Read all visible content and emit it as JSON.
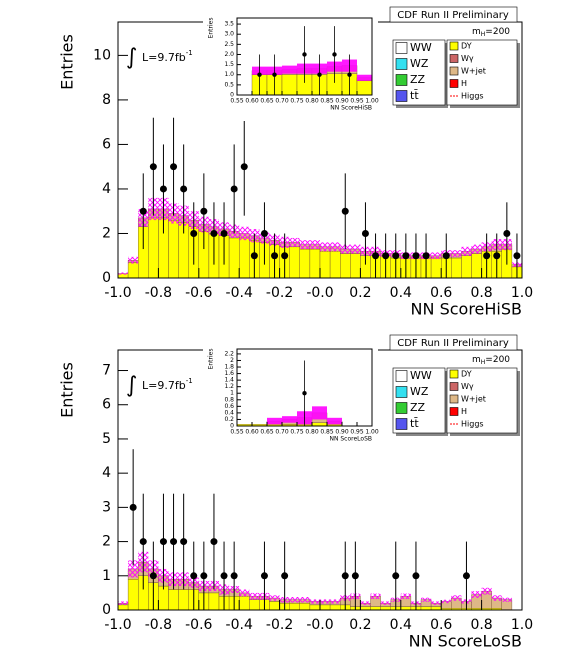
{
  "chart_data": [
    {
      "type": "histogram",
      "header": "CDF Run II Preliminary",
      "mass": {
        "base": "m",
        "sub": "H",
        "rest": "=200"
      },
      "lumi": {
        "symbol": "∫",
        "text": "L=9.7fb",
        "sup": "-1"
      },
      "xlabel": "NN ScoreHiSB",
      "ylabel": "Entries",
      "xlim": [
        -1,
        1
      ],
      "ylim": [
        0,
        11.5
      ],
      "xticks": [
        {
          "value": -1,
          "label": "-1.0"
        },
        -0.8,
        -0.6,
        -0.4,
        -0.2,
        {
          "value": 0,
          "label": "-0.0"
        },
        0.2,
        0.4,
        0.6,
        0.8,
        {
          "value": 1,
          "label": "1.0"
        }
      ],
      "yticks": [
        0,
        2,
        4,
        6,
        8,
        10
      ],
      "bins": [
        -1,
        -0.95,
        -0.9,
        -0.85,
        -0.8,
        -0.75,
        -0.7,
        -0.65,
        -0.6,
        -0.55,
        -0.5,
        -0.45,
        -0.4,
        -0.35,
        -0.3,
        -0.25,
        -0.2,
        -0.15,
        -0.1,
        -0.05,
        0,
        0.05,
        0.1,
        0.15,
        0.2,
        0.25,
        0.3,
        0.35,
        0.4,
        0.45,
        0.5,
        0.55,
        0.6,
        0.65,
        0.7,
        0.75,
        0.8,
        0.85,
        0.9,
        0.95,
        1
      ],
      "series": [
        {
          "name": "WW",
          "color": "#ffffff"
        },
        {
          "name": "WZ",
          "color": "#33e0f0"
        },
        {
          "name": "ZZ",
          "color": "#33cc33"
        },
        {
          "name": "tt̄",
          "color": "#5555ee"
        },
        {
          "name": "DY",
          "color": "#ffff00",
          "values": [
            0.2,
            0.7,
            2.3,
            2.7,
            2.7,
            2.6,
            2.5,
            2.3,
            2.1,
            2.0,
            1.9,
            1.8,
            1.8,
            1.7,
            1.6,
            1.5,
            1.4,
            1.4,
            1.3,
            1.3,
            1.2,
            1.2,
            1.1,
            1.1,
            1.0,
            1.0,
            1.0,
            0.9,
            0.9,
            0.9,
            0.9,
            0.9,
            0.9,
            0.9,
            1.0,
            1.1,
            1.2,
            1.2,
            1.3,
            0.5
          ]
        },
        {
          "name": "Wγ",
          "color": "#cc6666"
        },
        {
          "name": "W+jet",
          "color": "#deb887",
          "values": [
            0,
            0.1,
            0.4,
            0.4,
            0.4,
            0.3,
            0.3,
            0.3,
            0.3,
            0.3,
            0.3,
            0.3,
            0.2,
            0.2,
            0.2,
            0.2,
            0.2,
            0.2,
            0.2,
            0.2,
            0.2,
            0.2,
            0.2,
            0.2,
            0.2,
            0.2,
            0.1,
            0.2,
            0.1,
            0.1,
            0.1,
            0.1,
            0.2,
            0.2,
            0.2,
            0.2,
            0.2,
            0.3,
            0.2,
            0.1
          ]
        },
        {
          "name": "H",
          "color": "#ff0000"
        },
        {
          "name": "Higgs",
          "color": "#ff0000",
          "marker": "line"
        }
      ],
      "uncertainty": [
        0.05,
        0.15,
        0.4,
        0.5,
        0.5,
        0.45,
        0.45,
        0.4,
        0.35,
        0.35,
        0.3,
        0.3,
        0.3,
        0.3,
        0.25,
        0.25,
        0.25,
        0.2,
        0.2,
        0.2,
        0.2,
        0.2,
        0.2,
        0.2,
        0.2,
        0.2,
        0.15,
        0.15,
        0.15,
        0.15,
        0.15,
        0.15,
        0.15,
        0.15,
        0.2,
        0.2,
        0.2,
        0.25,
        0.25,
        0.1
      ],
      "band_color": "#ff00ff",
      "points": {
        "x": [
          -0.875,
          -0.825,
          -0.775,
          -0.725,
          -0.675,
          -0.625,
          -0.575,
          -0.525,
          -0.475,
          -0.425,
          -0.375,
          -0.325,
          -0.275,
          -0.225,
          -0.175,
          0.125,
          0.225,
          0.275,
          0.325,
          0.375,
          0.425,
          0.475,
          0.525,
          0.625,
          0.825,
          0.875,
          0.925,
          0.975
        ],
        "values": [
          3,
          5,
          4,
          5,
          4,
          2,
          3,
          2,
          2,
          4,
          5,
          1,
          2,
          1,
          1,
          3,
          2,
          1,
          1,
          1,
          1,
          1,
          1,
          1,
          1,
          1,
          2,
          1
        ],
        "errors": [
          1.7,
          2.2,
          2,
          2.2,
          2,
          1.4,
          1.7,
          1.4,
          1.4,
          2,
          2.2,
          1,
          1.4,
          1,
          1,
          1.7,
          1.4,
          1,
          1,
          1,
          1,
          1,
          1,
          1,
          1,
          1,
          1.4,
          1
        ]
      },
      "inset": {
        "type": "histogram",
        "xlabel": "NN ScoreHiSB",
        "ylabel": "Entries",
        "xlim": [
          0.55,
          1
        ],
        "ylim": [
          0,
          3.8
        ],
        "xticks": [
          0.55,
          {
            "value": 0.6,
            "label": "0.60"
          },
          0.65,
          {
            "value": 0.7,
            "label": "0.70"
          },
          0.75,
          {
            "value": 0.8,
            "label": "0.80"
          },
          0.85,
          {
            "value": 0.9,
            "label": "0.90"
          },
          0.95,
          {
            "value": 1,
            "label": "1.00"
          }
        ],
        "yticks": [
          0,
          0.5,
          {
            "value": 1,
            "label": "1.0"
          },
          1.5,
          {
            "value": 2,
            "label": "2.0"
          },
          2.5,
          {
            "value": 3,
            "label": "3.0"
          },
          3.5
        ],
        "bins": [
          0.55,
          0.6,
          0.65,
          0.7,
          0.75,
          0.8,
          0.85,
          0.9,
          0.95,
          1
        ],
        "series": [
          {
            "color": "#ffff00",
            "values": [
              0,
              1,
              1,
              1,
              1,
              1,
              1.05,
              1.05,
              0.7
            ]
          },
          {
            "color": "#deb887",
            "values": [
              0,
              0.2,
              0.2,
              0.25,
              0.3,
              0.3,
              0.35,
              0.4,
              0.15
            ]
          }
        ],
        "uncertainty": [
          0,
          0.2,
          0.2,
          0.2,
          0.25,
          0.25,
          0.25,
          0.3,
          0.15
        ],
        "band_color": "#ff00ff",
        "points": {
          "x": [
            0.625,
            0.675,
            0.775,
            0.825,
            0.875,
            0.925
          ],
          "values": [
            1,
            1,
            2,
            1,
            2,
            1
          ],
          "errors": [
            1,
            1,
            1.4,
            1,
            1.4,
            1
          ]
        }
      }
    },
    {
      "type": "histogram",
      "header": "CDF Run II Preliminary",
      "mass": {
        "base": "m",
        "sub": "H",
        "rest": "=200"
      },
      "lumi": {
        "symbol": "∫",
        "text": "L=9.7fb",
        "sup": "-1"
      },
      "xlabel": "NN ScoreLoSB",
      "ylabel": "Entries",
      "xlim": [
        -1,
        1
      ],
      "ylim": [
        0,
        7.6
      ],
      "xticks": [
        {
          "value": -1,
          "label": "-1.0"
        },
        -0.8,
        -0.6,
        -0.4,
        -0.2,
        {
          "value": 0,
          "label": "-0.0"
        },
        0.2,
        0.4,
        0.6,
        0.8,
        {
          "value": 1,
          "label": "1.0"
        }
      ],
      "yticks": [
        0,
        1,
        2,
        3,
        4,
        5,
        6,
        7
      ],
      "bins": [
        -1,
        -0.95,
        -0.9,
        -0.85,
        -0.8,
        -0.75,
        -0.7,
        -0.65,
        -0.6,
        -0.55,
        -0.5,
        -0.45,
        -0.4,
        -0.35,
        -0.3,
        -0.25,
        -0.2,
        -0.15,
        -0.1,
        -0.05,
        0,
        0.05,
        0.1,
        0.15,
        0.2,
        0.25,
        0.3,
        0.35,
        0.4,
        0.45,
        0.5,
        0.55,
        0.6,
        0.65,
        0.7,
        0.75,
        0.8,
        0.85,
        0.9,
        0.95,
        1
      ],
      "series": [
        {
          "name": "WW",
          "color": "#ffffff"
        },
        {
          "name": "WZ",
          "color": "#33e0f0"
        },
        {
          "name": "ZZ",
          "color": "#33cc33"
        },
        {
          "name": "tt̄",
          "color": "#5555ee"
        },
        {
          "name": "DY",
          "color": "#ffff00",
          "values": [
            0.15,
            0.9,
            1.0,
            0.8,
            0.7,
            0.6,
            0.6,
            0.6,
            0.5,
            0.5,
            0.4,
            0.4,
            0.4,
            0.3,
            0.3,
            0.25,
            0.2,
            0.2,
            0.2,
            0.15,
            0.15,
            0.15,
            0.15,
            0.1,
            0.1,
            0.1,
            0.1,
            0.1,
            0.1,
            0.1,
            0.1,
            0.1,
            0.05,
            0.05,
            0.05,
            0.05,
            0.05,
            0.05,
            0,
            0
          ]
        },
        {
          "name": "Wγ",
          "color": "#cc6666"
        },
        {
          "name": "W+jet",
          "color": "#deb887",
          "values": [
            0.05,
            0.3,
            0.4,
            0.4,
            0.3,
            0.3,
            0.3,
            0.2,
            0.2,
            0.2,
            0.2,
            0.2,
            0.1,
            0.1,
            0.1,
            0.1,
            0.1,
            0.1,
            0.1,
            0.1,
            0.1,
            0.1,
            0.2,
            0.3,
            0.1,
            0.3,
            0.1,
            0.2,
            0.3,
            0.1,
            0.2,
            0.1,
            0.2,
            0.3,
            0.2,
            0.4,
            0.5,
            0.3,
            0.3,
            0
          ]
        },
        {
          "name": "H",
          "color": "#ff0000"
        },
        {
          "name": "Higgs",
          "color": "#ff0000",
          "marker": "line"
        }
      ],
      "uncertainty": [
        0.05,
        0.25,
        0.3,
        0.25,
        0.2,
        0.2,
        0.2,
        0.15,
        0.15,
        0.15,
        0.15,
        0.1,
        0.1,
        0.1,
        0.1,
        0.08,
        0.08,
        0.08,
        0.08,
        0.06,
        0.06,
        0.06,
        0.08,
        0.08,
        0.05,
        0.08,
        0.05,
        0.06,
        0.08,
        0.05,
        0.06,
        0.05,
        0.05,
        0.08,
        0.06,
        0.1,
        0.1,
        0.08,
        0.06,
        0
      ],
      "band_color": "#ff00ff",
      "points": {
        "x": [
          -0.925,
          -0.875,
          -0.825,
          -0.775,
          -0.725,
          -0.675,
          -0.625,
          -0.575,
          -0.525,
          -0.475,
          -0.425,
          -0.275,
          -0.175,
          0.125,
          0.175,
          0.375,
          0.475,
          0.725
        ],
        "values": [
          3,
          2,
          1,
          2,
          2,
          2,
          1,
          1,
          2,
          1,
          1,
          1,
          1,
          1,
          1,
          1,
          1,
          1
        ],
        "errors": [
          1.7,
          1.4,
          1,
          1.4,
          1.4,
          1.4,
          1,
          1,
          1.4,
          1,
          1,
          1,
          1,
          1,
          1,
          1,
          1,
          1
        ]
      },
      "inset": {
        "type": "histogram",
        "xlabel": "NN ScoreLoSB",
        "ylabel": "Entries",
        "xlim": [
          0.55,
          1
        ],
        "ylim": [
          0,
          2.35
        ],
        "xticks": [
          0.55,
          {
            "value": 0.6,
            "label": "0.60"
          },
          0.65,
          {
            "value": 0.7,
            "label": "0.70"
          },
          0.75,
          {
            "value": 0.8,
            "label": "0.80"
          },
          0.85,
          {
            "value": 0.9,
            "label": "0.90"
          },
          0.95,
          {
            "value": 1,
            "label": "1.00"
          }
        ],
        "yticks": [
          0,
          0.2,
          0.4,
          0.6,
          0.8,
          1,
          1.2,
          1.4,
          1.6,
          1.8,
          2,
          2.2
        ],
        "bins": [
          0.55,
          0.6,
          0.65,
          0.7,
          0.75,
          0.8,
          0.85,
          0.9,
          0.95,
          1
        ],
        "series": [
          {
            "color": "#ffff00",
            "values": [
              0.05,
              0.05,
              0.05,
              0.05,
              0.05,
              0.1,
              0.05,
              0,
              0
            ]
          },
          {
            "color": "#deb887",
            "values": [
              0,
              0,
              0.1,
              0.15,
              0.2,
              0.3,
              0.1,
              0,
              0
            ]
          }
        ],
        "uncertainty": [
          0,
          0,
          0.1,
          0.1,
          0.2,
          0.2,
          0.1,
          0,
          0
        ],
        "band_color": "#ff00ff",
        "points": {
          "x": [
            0.775
          ],
          "values": [
            1
          ],
          "errors": [
            1
          ]
        }
      }
    }
  ]
}
